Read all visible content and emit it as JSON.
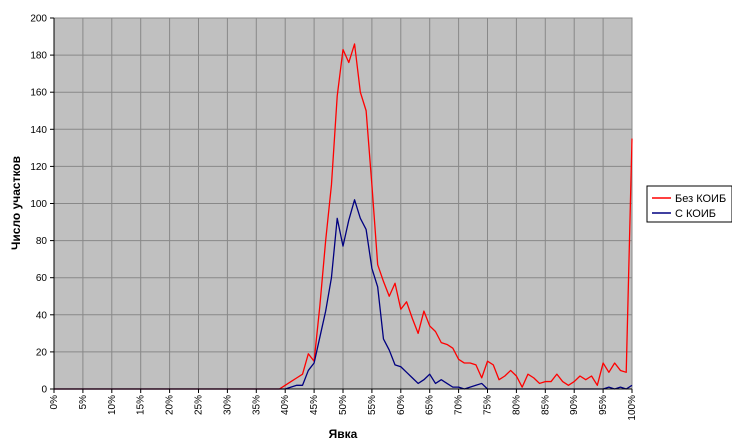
{
  "chart_data": {
    "type": "line",
    "title": "",
    "xlabel": "Явка",
    "ylabel": "Число участков",
    "x_unit": "%",
    "xlim": [
      0,
      100
    ],
    "ylim": [
      0,
      200
    ],
    "x_ticks": [
      0,
      5,
      10,
      15,
      20,
      25,
      30,
      35,
      40,
      45,
      50,
      55,
      60,
      65,
      70,
      75,
      80,
      85,
      90,
      95,
      100
    ],
    "x_tick_labels": [
      "0%",
      "5%",
      "10%",
      "15%",
      "20%",
      "25%",
      "30%",
      "35%",
      "40%",
      "45%",
      "50%",
      "55%",
      "60%",
      "65%",
      "70%",
      "75%",
      "80%",
      "85%",
      "90%",
      "95%",
      "100%"
    ],
    "y_ticks": [
      0,
      20,
      40,
      60,
      80,
      100,
      120,
      140,
      160,
      180,
      200
    ],
    "y_tick_labels": [
      "0",
      "20",
      "40",
      "60",
      "80",
      "100",
      "120",
      "140",
      "160",
      "180",
      "200"
    ],
    "grid": true,
    "legend_position": "right",
    "plot_background": "#c0c0c0",
    "grid_color": "#888888",
    "series": [
      {
        "name": "Без КОИБ",
        "color": "#ff0000",
        "x": [
          0,
          5,
          10,
          15,
          20,
          25,
          30,
          35,
          38,
          39,
          40,
          41,
          42,
          43,
          44,
          45,
          46,
          47,
          48,
          49,
          50,
          51,
          52,
          53,
          54,
          55,
          56,
          57,
          58,
          59,
          60,
          61,
          62,
          63,
          64,
          65,
          66,
          67,
          68,
          69,
          70,
          71,
          72,
          73,
          74,
          75,
          76,
          77,
          78,
          79,
          80,
          81,
          82,
          83,
          84,
          85,
          86,
          87,
          88,
          89,
          90,
          91,
          92,
          93,
          94,
          95,
          96,
          97,
          98,
          99,
          100
        ],
        "y": [
          0,
          0,
          0,
          0,
          0,
          0,
          0,
          0,
          0,
          0,
          2,
          4,
          6,
          8,
          19,
          15,
          45,
          80,
          110,
          158,
          183,
          176,
          186,
          160,
          150,
          110,
          67,
          58,
          50,
          57,
          43,
          47,
          38,
          30,
          42,
          34,
          31,
          25,
          24,
          22,
          16,
          14,
          14,
          13,
          6,
          15,
          13,
          5,
          7,
          10,
          7,
          1,
          8,
          6,
          3,
          4,
          4,
          8,
          4,
          2,
          4,
          7,
          5,
          7,
          2,
          14,
          9,
          14,
          10,
          9,
          135
        ]
      },
      {
        "name": "С КОИБ",
        "color": "#000080",
        "x": [
          0,
          5,
          10,
          15,
          20,
          25,
          30,
          35,
          40,
          41,
          42,
          43,
          44,
          45,
          46,
          47,
          48,
          49,
          50,
          51,
          52,
          53,
          54,
          55,
          56,
          57,
          58,
          59,
          60,
          61,
          62,
          63,
          64,
          65,
          66,
          67,
          68,
          69,
          70,
          71,
          72,
          73,
          74,
          75,
          76,
          77,
          78,
          79,
          80,
          81,
          82,
          83,
          84,
          85,
          86,
          87,
          88,
          89,
          90,
          91,
          92,
          93,
          94,
          95,
          96,
          97,
          98,
          99,
          100
        ],
        "y": [
          0,
          0,
          0,
          0,
          0,
          0,
          0,
          0,
          0,
          1,
          2,
          2,
          10,
          14,
          28,
          42,
          60,
          92,
          77,
          91,
          102,
          92,
          86,
          65,
          55,
          27,
          21,
          13,
          12,
          9,
          6,
          3,
          5,
          8,
          3,
          5,
          3,
          1,
          1,
          0,
          1,
          2,
          3,
          0,
          0,
          0,
          0,
          0,
          0,
          0,
          0,
          0,
          0,
          0,
          0,
          0,
          0,
          0,
          0,
          0,
          0,
          0,
          0,
          0,
          1,
          0,
          1,
          0,
          2
        ]
      }
    ]
  }
}
